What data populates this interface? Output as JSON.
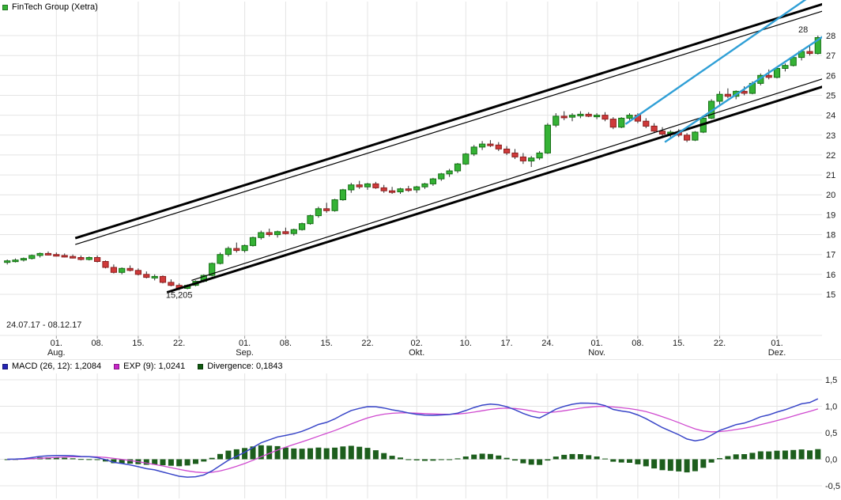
{
  "header": {
    "title": "FinTech Group (Xetra)",
    "legend_color": "#35b235"
  },
  "macd_legend": {
    "items": [
      {
        "label": "MACD (26, 12): 1,2084",
        "color": "#2525b5"
      },
      {
        "label": "EXP (9): 1,0241",
        "color": "#c926c9"
      },
      {
        "label": "Divergence: 0,1843",
        "color": "#0f5a0f"
      }
    ]
  },
  "chart_data": {
    "type": "candlestick",
    "title": "FinTech Group (Xetra)",
    "date_range_label": "24.07.17 - 08.12.17",
    "grid": true,
    "legend_position": "top-left",
    "colors": {
      "up": "#35b235",
      "up_border": "#157015",
      "down": "#cf3a3a",
      "down_border": "#8c1f1f",
      "wick": "#2b2b2b",
      "grid": "#e4e4e4",
      "tick": "#9a9a9a",
      "annotation": "#a0a0a0"
    },
    "price_axis": {
      "side": "right",
      "y_range": [
        15,
        28
      ],
      "ticks": [
        15,
        16,
        17,
        18,
        19,
        20,
        21,
        22,
        23,
        24,
        25,
        26,
        27,
        28
      ]
    },
    "x_axis": {
      "ticks": [
        {
          "day": 6,
          "label": "01.",
          "month": "Aug."
        },
        {
          "day": 11,
          "label": "08."
        },
        {
          "day": 16,
          "label": "15."
        },
        {
          "day": 21,
          "label": "22."
        },
        {
          "day": 29,
          "label": "01.",
          "month": "Sep."
        },
        {
          "day": 34,
          "label": "08."
        },
        {
          "day": 39,
          "label": "15."
        },
        {
          "day": 44,
          "label": "22."
        },
        {
          "day": 50,
          "label": "02.",
          "month": "Okt."
        },
        {
          "day": 56,
          "label": "10."
        },
        {
          "day": 61,
          "label": "17."
        },
        {
          "day": 66,
          "label": "24."
        },
        {
          "day": 72,
          "label": "01.",
          "month": "Nov."
        },
        {
          "day": 77,
          "label": "08."
        },
        {
          "day": 82,
          "label": "15."
        },
        {
          "day": 87,
          "label": "22."
        },
        {
          "day": 94,
          "label": "01.",
          "month": "Dez."
        }
      ]
    },
    "candles_format": "[open, high, low, close]",
    "candles": [
      [
        16.6,
        16.75,
        16.5,
        16.68
      ],
      [
        16.68,
        16.8,
        16.6,
        16.72
      ],
      [
        16.72,
        16.85,
        16.65,
        16.8
      ],
      [
        16.8,
        17.0,
        16.75,
        16.95
      ],
      [
        16.95,
        17.1,
        16.85,
        17.05
      ],
      [
        17.05,
        17.15,
        16.95,
        17.0
      ],
      [
        17.0,
        17.1,
        16.9,
        16.95
      ],
      [
        16.95,
        17.05,
        16.85,
        16.9
      ],
      [
        16.9,
        17.0,
        16.8,
        16.85
      ],
      [
        16.85,
        16.95,
        16.7,
        16.75
      ],
      [
        16.75,
        16.9,
        16.7,
        16.85
      ],
      [
        16.85,
        16.95,
        16.6,
        16.65
      ],
      [
        16.65,
        16.7,
        16.3,
        16.35
      ],
      [
        16.35,
        16.5,
        16.05,
        16.1
      ],
      [
        16.1,
        16.35,
        16.0,
        16.3
      ],
      [
        16.3,
        16.45,
        16.15,
        16.2
      ],
      [
        16.2,
        16.3,
        15.95,
        16.0
      ],
      [
        16.0,
        16.15,
        15.8,
        15.85
      ],
      [
        15.85,
        16.0,
        15.7,
        15.9
      ],
      [
        15.9,
        15.95,
        15.55,
        15.6
      ],
      [
        15.6,
        15.75,
        15.4,
        15.45
      ],
      [
        15.45,
        15.55,
        15.205,
        15.3
      ],
      [
        15.3,
        15.5,
        15.25,
        15.45
      ],
      [
        15.45,
        15.7,
        15.4,
        15.65
      ],
      [
        15.65,
        16.0,
        15.6,
        15.95
      ],
      [
        15.95,
        16.6,
        15.9,
        16.55
      ],
      [
        16.55,
        17.1,
        16.5,
        17.0
      ],
      [
        17.0,
        17.4,
        16.9,
        17.3
      ],
      [
        17.3,
        17.6,
        17.1,
        17.2
      ],
      [
        17.2,
        17.5,
        17.1,
        17.45
      ],
      [
        17.45,
        17.9,
        17.4,
        17.85
      ],
      [
        17.85,
        18.2,
        17.75,
        18.1
      ],
      [
        18.1,
        18.3,
        17.9,
        18.0
      ],
      [
        18.0,
        18.2,
        17.85,
        18.15
      ],
      [
        18.15,
        18.35,
        18.0,
        18.05
      ],
      [
        18.05,
        18.3,
        17.95,
        18.25
      ],
      [
        18.25,
        18.6,
        18.2,
        18.55
      ],
      [
        18.55,
        19.0,
        18.5,
        18.95
      ],
      [
        18.95,
        19.4,
        18.85,
        19.3
      ],
      [
        19.3,
        19.6,
        19.1,
        19.2
      ],
      [
        19.2,
        19.8,
        19.15,
        19.75
      ],
      [
        19.75,
        20.3,
        19.7,
        20.25
      ],
      [
        20.25,
        20.6,
        20.1,
        20.5
      ],
      [
        20.5,
        20.7,
        20.3,
        20.4
      ],
      [
        20.4,
        20.6,
        20.25,
        20.55
      ],
      [
        20.55,
        20.65,
        20.3,
        20.35
      ],
      [
        20.35,
        20.5,
        20.1,
        20.2
      ],
      [
        20.2,
        20.4,
        20.05,
        20.15
      ],
      [
        20.15,
        20.35,
        20.05,
        20.3
      ],
      [
        20.3,
        20.45,
        20.15,
        20.25
      ],
      [
        20.25,
        20.45,
        20.1,
        20.4
      ],
      [
        20.4,
        20.6,
        20.3,
        20.55
      ],
      [
        20.55,
        20.85,
        20.45,
        20.8
      ],
      [
        20.8,
        21.1,
        20.7,
        21.05
      ],
      [
        21.05,
        21.3,
        20.9,
        21.2
      ],
      [
        21.2,
        21.6,
        21.1,
        21.55
      ],
      [
        21.55,
        22.1,
        21.5,
        22.05
      ],
      [
        22.05,
        22.5,
        21.95,
        22.4
      ],
      [
        22.4,
        22.7,
        22.25,
        22.55
      ],
      [
        22.55,
        22.75,
        22.4,
        22.5
      ],
      [
        22.5,
        22.65,
        22.2,
        22.3
      ],
      [
        22.3,
        22.45,
        22.0,
        22.1
      ],
      [
        22.1,
        22.3,
        21.8,
        21.9
      ],
      [
        21.9,
        22.1,
        21.55,
        21.7
      ],
      [
        21.7,
        21.95,
        21.4,
        21.85
      ],
      [
        21.85,
        22.2,
        21.75,
        22.1
      ],
      [
        22.1,
        23.6,
        22.05,
        23.5
      ],
      [
        23.5,
        24.1,
        23.4,
        23.95
      ],
      [
        23.95,
        24.2,
        23.75,
        23.9
      ],
      [
        23.9,
        24.1,
        23.7,
        24.0
      ],
      [
        24.0,
        24.2,
        23.85,
        24.05
      ],
      [
        24.05,
        24.15,
        23.9,
        23.95
      ],
      [
        23.95,
        24.1,
        23.8,
        24.0
      ],
      [
        24.0,
        24.15,
        23.7,
        23.8
      ],
      [
        23.8,
        23.9,
        23.3,
        23.4
      ],
      [
        23.4,
        23.9,
        23.35,
        23.85
      ],
      [
        23.85,
        24.1,
        23.75,
        24.0
      ],
      [
        24.0,
        24.1,
        23.6,
        23.7
      ],
      [
        23.7,
        23.85,
        23.35,
        23.45
      ],
      [
        23.45,
        23.6,
        23.1,
        23.2
      ],
      [
        23.2,
        23.4,
        22.95,
        23.05
      ],
      [
        23.05,
        23.25,
        22.85,
        23.15
      ],
      [
        23.15,
        23.3,
        22.9,
        23.0
      ],
      [
        23.0,
        23.1,
        22.65,
        22.75
      ],
      [
        22.75,
        23.2,
        22.7,
        23.15
      ],
      [
        23.15,
        23.9,
        23.1,
        23.85
      ],
      [
        23.85,
        24.8,
        23.8,
        24.7
      ],
      [
        24.7,
        25.2,
        24.5,
        25.05
      ],
      [
        25.05,
        25.35,
        24.85,
        24.95
      ],
      [
        24.95,
        25.25,
        24.8,
        25.2
      ],
      [
        25.2,
        25.45,
        25.0,
        25.1
      ],
      [
        25.1,
        25.7,
        25.05,
        25.6
      ],
      [
        25.6,
        26.1,
        25.5,
        26.0
      ],
      [
        26.0,
        26.3,
        25.8,
        25.9
      ],
      [
        25.9,
        26.4,
        25.85,
        26.35
      ],
      [
        26.35,
        26.6,
        26.2,
        26.5
      ],
      [
        26.5,
        27.0,
        26.45,
        26.9
      ],
      [
        26.9,
        27.3,
        26.75,
        27.2
      ],
      [
        27.2,
        27.5,
        27.0,
        27.1
      ],
      [
        27.1,
        28.0,
        27.05,
        27.9
      ]
    ],
    "trendlines": [
      {
        "id": "channel-upper-thick",
        "d1": 8.3,
        "p1": 17.82,
        "d2": 100.5,
        "p2": 29.7,
        "w": 3,
        "color": "#000000"
      },
      {
        "id": "channel-upper-thin",
        "d1": 8.3,
        "p1": 17.5,
        "d2": 100.5,
        "p2": 29.35,
        "w": 1.2,
        "color": "#000000"
      },
      {
        "id": "channel-lower-thick",
        "d1": 19.5,
        "p1": 15.1,
        "d2": 100.5,
        "p2": 25.55,
        "w": 3,
        "color": "#000000"
      },
      {
        "id": "channel-lower-thin",
        "d1": 22.5,
        "p1": 15.7,
        "d2": 100.5,
        "p2": 25.95,
        "w": 1.2,
        "color": "#000000"
      },
      {
        "id": "trend-blue-upper",
        "d1": 75.5,
        "p1": 23.55,
        "d2": 98.5,
        "p2": 30.1,
        "w": 2.4,
        "color": "#2f9fd6"
      },
      {
        "id": "trend-blue-lower",
        "d1": 80.3,
        "p1": 22.65,
        "d2": 100.5,
        "p2": 28.2,
        "w": 2.4,
        "color": "#2f9fd6"
      }
    ],
    "annotations": {
      "low": {
        "text": "15,205",
        "day": 21,
        "price": 14.82
      },
      "high": {
        "text": "28",
        "day": 96.6,
        "price": 28.15
      }
    },
    "macd_panel": {
      "indicator": "MACD",
      "params": "26, 12",
      "signal_params": "9",
      "macd_value": 1.2084,
      "signal_value": 1.0241,
      "divergence_value": 0.1843,
      "derived_from": "candles close (EMA12 - EMA26, signal EMA9)",
      "y_range": [
        -0.5,
        1.5
      ],
      "y_ticks": [
        {
          "value": 1.5,
          "label": "1,5"
        },
        {
          "value": 1.0,
          "label": "1,0"
        },
        {
          "value": 0.5,
          "label": "0,5"
        },
        {
          "value": 0.0,
          "label": "0,0"
        },
        {
          "value": -0.5,
          "label": "-0,5"
        }
      ],
      "colors": {
        "macd_line": "#3946c8",
        "signal_line": "#cf49cf",
        "histogram": "#1d5e1d"
      }
    }
  }
}
